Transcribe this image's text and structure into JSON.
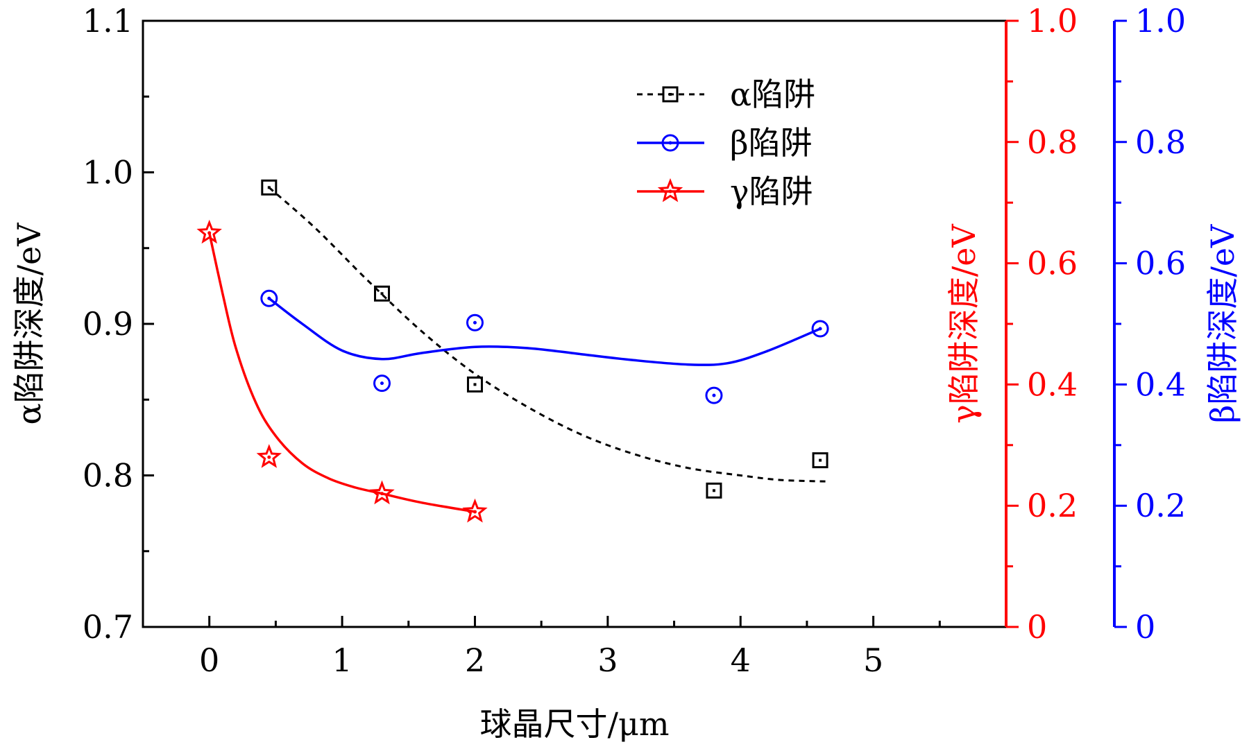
{
  "chart_data": {
    "type": "scatter",
    "x_axis": {
      "label": "球晶尺寸/μm",
      "range": [
        -0.5,
        6.0
      ],
      "ticks": [
        0,
        1,
        2,
        3,
        4,
        5
      ],
      "tick_labels": [
        "0",
        "1",
        "2",
        "3",
        "4",
        "5"
      ]
    },
    "y_left": {
      "label": "α陷阱深度/eV",
      "range": [
        0.7,
        1.1
      ],
      "ticks": [
        0.7,
        0.8,
        0.9,
        1.0,
        1.1
      ],
      "tick_labels": [
        "0.7",
        "0.8",
        "0.9",
        "1.0",
        "1.1"
      ],
      "color": "#000000"
    },
    "y_right_red": {
      "label": "γ陷阱深度/eV",
      "range": [
        0,
        1.0
      ],
      "ticks": [
        0,
        0.2,
        0.4,
        0.6,
        0.8,
        1.0
      ],
      "tick_labels": [
        "0",
        "0.2",
        "0.4",
        "0.6",
        "0.8",
        "1.0"
      ],
      "color": "#ff0000"
    },
    "y_right_blue": {
      "label": "β陷阱深度/eV",
      "range": [
        0,
        1.0
      ],
      "ticks": [
        0,
        0.2,
        0.4,
        0.6,
        0.8,
        1.0
      ],
      "tick_labels": [
        "0",
        "0.2",
        "0.4",
        "0.6",
        "0.8",
        "1.0"
      ],
      "color": "#0000ff"
    },
    "series": [
      {
        "name": "α陷阱",
        "axis": "y_left",
        "color": "#000000",
        "marker": "square",
        "line": "dashed",
        "x": [
          0.45,
          1.3,
          2.0,
          3.8,
          4.6
        ],
        "y": [
          0.99,
          0.92,
          0.86,
          0.79,
          0.81
        ],
        "fit_x": [
          0.45,
          0.8,
          1.2,
          1.6,
          2.0,
          2.4,
          2.8,
          3.2,
          3.6,
          4.0,
          4.3,
          4.65
        ],
        "fit_y": [
          0.99,
          0.963,
          0.928,
          0.895,
          0.867,
          0.845,
          0.827,
          0.814,
          0.805,
          0.8,
          0.797,
          0.796
        ]
      },
      {
        "name": "β陷阱",
        "axis": "y_right_blue",
        "color": "#0000ff",
        "marker": "circle",
        "line": "solid",
        "x": [
          0.45,
          1.3,
          2.0,
          3.8,
          4.6
        ],
        "y": [
          0.542,
          0.402,
          0.502,
          0.382,
          0.492
        ],
        "fit_x": [
          0.45,
          0.7,
          1.0,
          1.3,
          1.6,
          2.0,
          2.4,
          2.8,
          3.2,
          3.6,
          3.9,
          4.2,
          4.6
        ],
        "fit_y": [
          0.542,
          0.5,
          0.456,
          0.442,
          0.452,
          0.462,
          0.46,
          0.45,
          0.44,
          0.433,
          0.435,
          0.455,
          0.492
        ]
      },
      {
        "name": "γ陷阱",
        "axis": "y_right_red",
        "color": "#ff0000",
        "marker": "star",
        "line": "solid",
        "x": [
          0,
          0.45,
          1.3,
          2.0
        ],
        "y": [
          0.65,
          0.28,
          0.22,
          0.19
        ],
        "fit_x": [
          0,
          0.1,
          0.2,
          0.35,
          0.5,
          0.7,
          0.9,
          1.1,
          1.3,
          1.6,
          2.0
        ],
        "fit_y": [
          0.65,
          0.55,
          0.46,
          0.37,
          0.315,
          0.27,
          0.245,
          0.23,
          0.22,
          0.205,
          0.19
        ]
      }
    ],
    "legend": {
      "position": "top-center",
      "entries": [
        "α陷阱",
        "β陷阱",
        "γ陷阱"
      ]
    }
  }
}
